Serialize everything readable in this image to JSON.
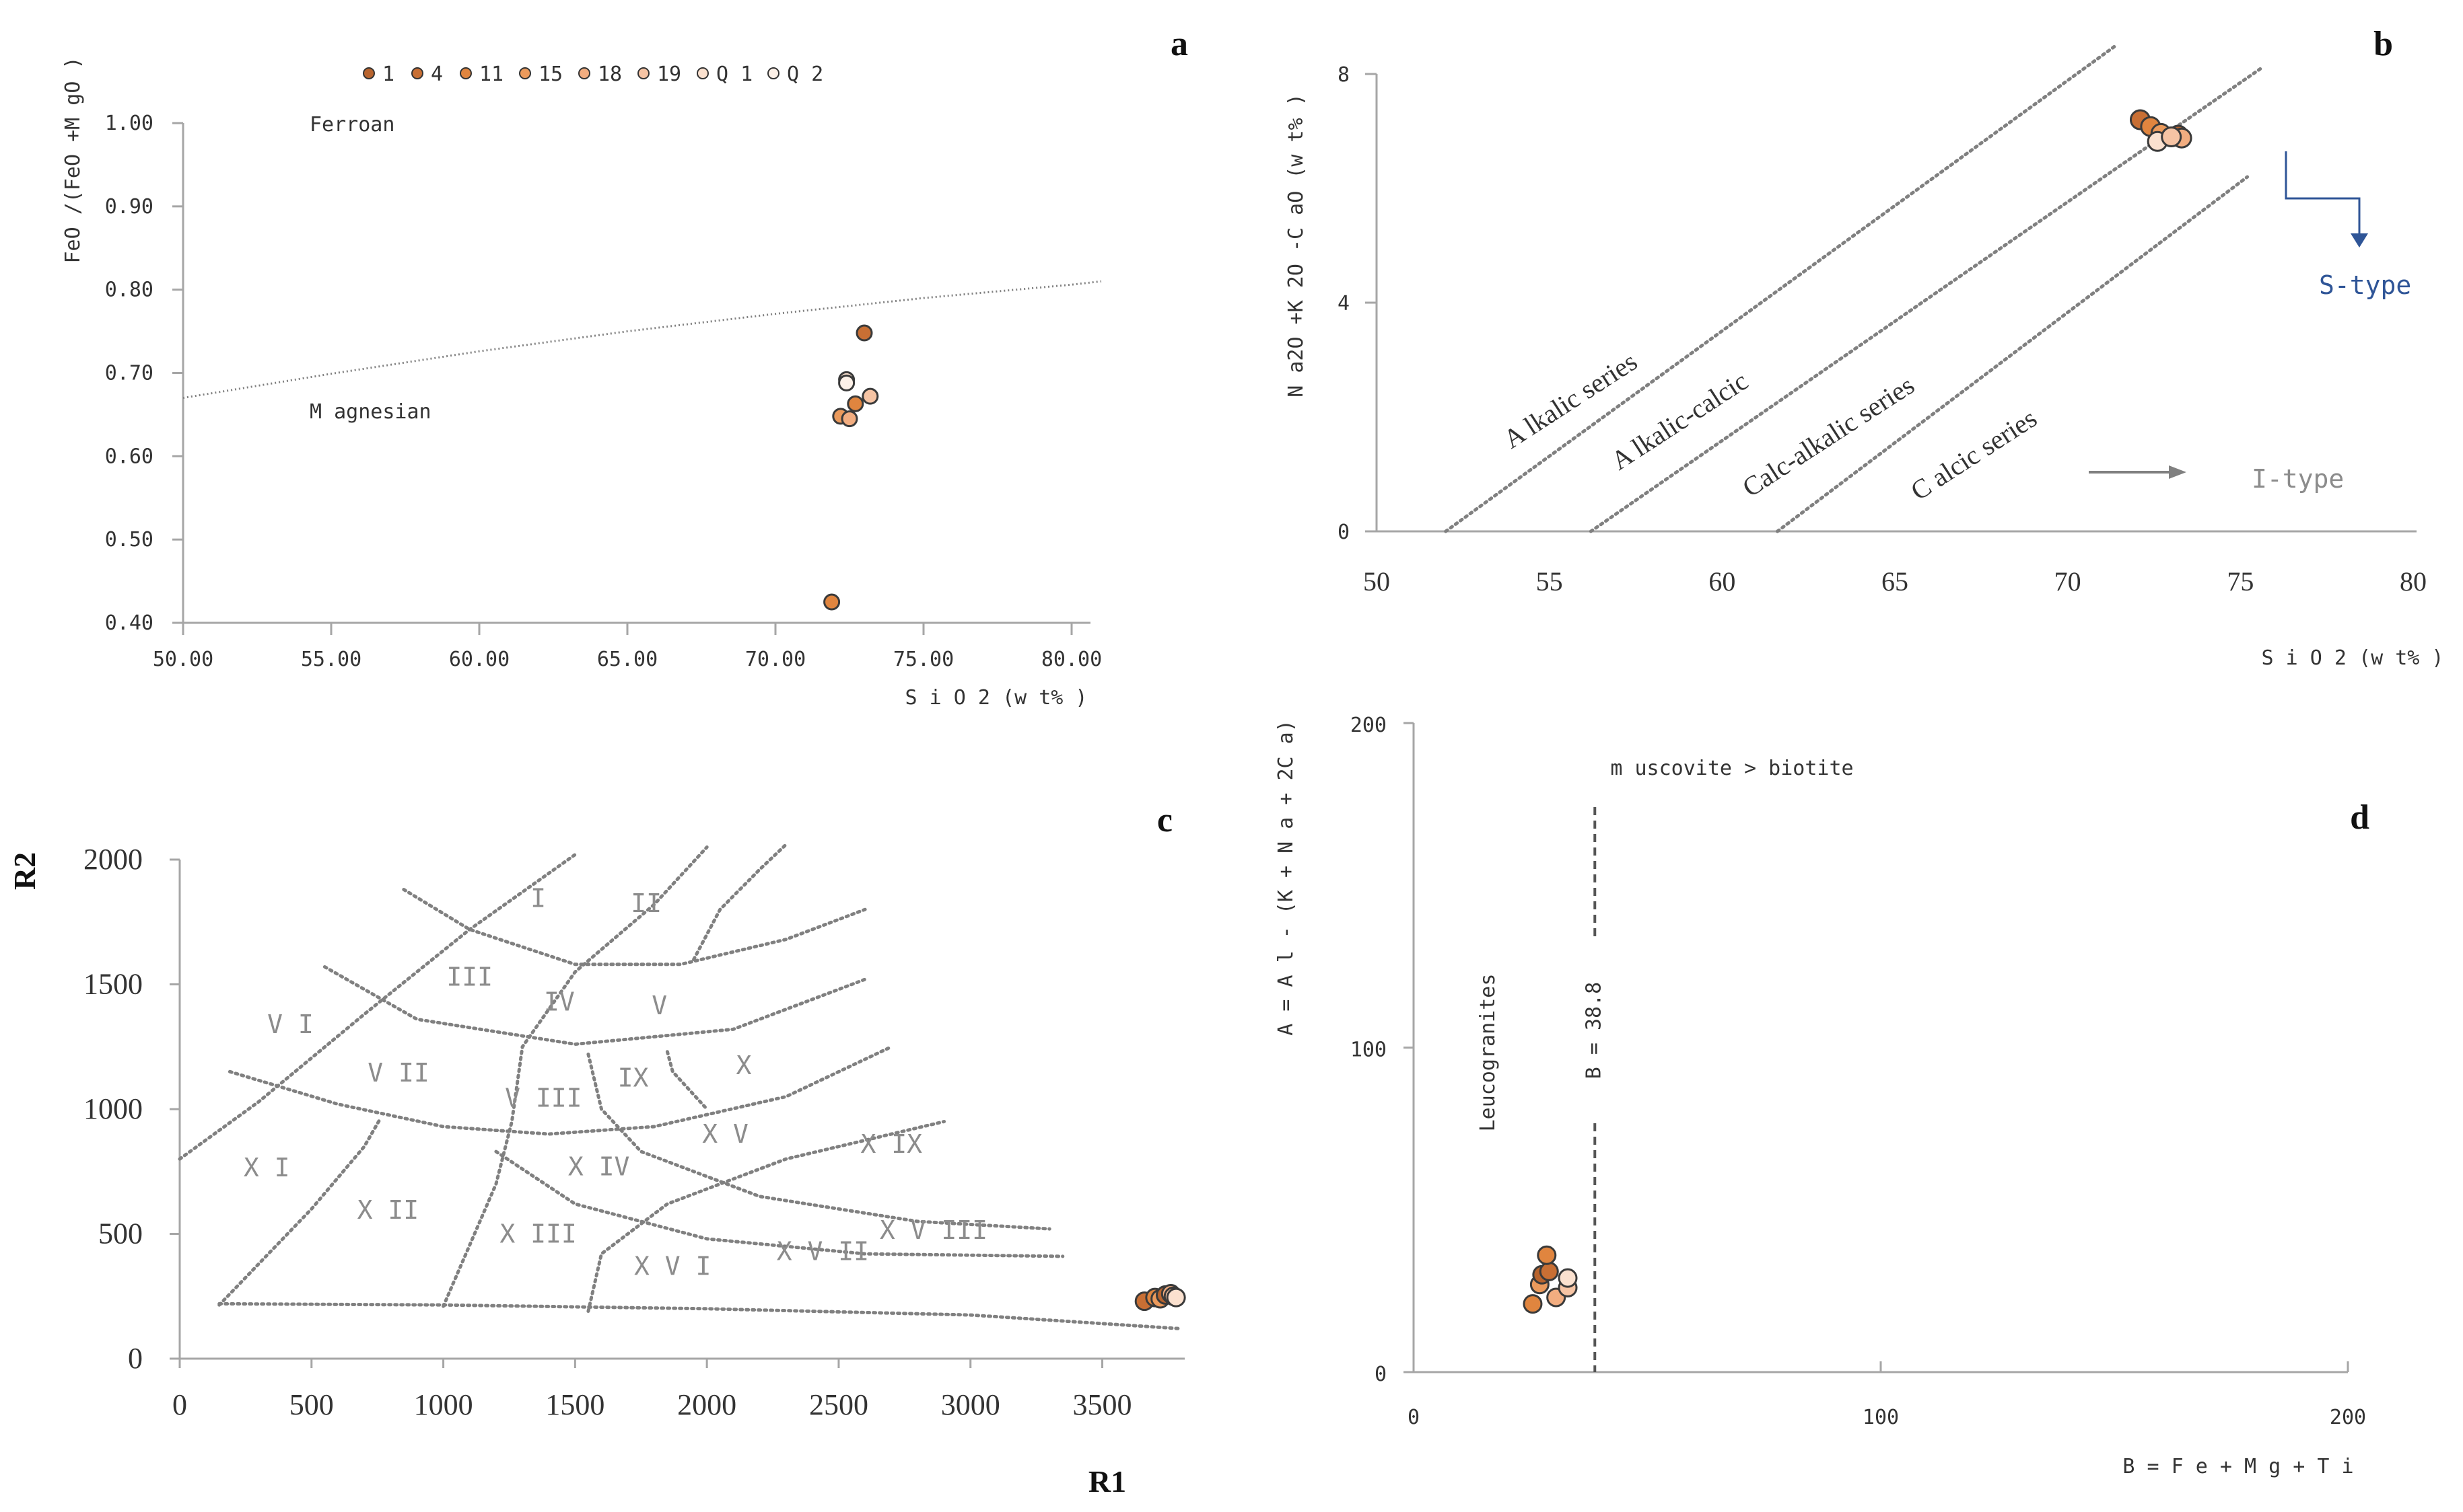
{
  "chart_data": [
    {
      "panel": "a",
      "type": "scatter",
      "panel_label": "a",
      "xlabel": "S i O 2 (w t% )",
      "ylabel": "FeO /(FeO +M gO )",
      "xlim": [
        50,
        82
      ],
      "ylim": [
        0.4,
        1.0
      ],
      "x_ticks": [
        "50.00",
        "55.00",
        "60.00",
        "65.00",
        "70.00",
        "75.00",
        "80.00"
      ],
      "y_ticks": [
        "0.40",
        "0.50",
        "0.60",
        "0.70",
        "0.80",
        "0.90",
        "1.00"
      ],
      "legend": [
        {
          "label": "1",
          "color": "#b8642e"
        },
        {
          "label": "4",
          "color": "#c86f34"
        },
        {
          "label": "11",
          "color": "#e0853f"
        },
        {
          "label": "15",
          "color": "#eb9a5c"
        },
        {
          "label": "18",
          "color": "#f2ad80"
        },
        {
          "label": "19",
          "color": "#f6c4a4"
        },
        {
          "label": "Q 1",
          "color": "#fbe1cf"
        },
        {
          "label": "Q 2",
          "color": "#fdf1e8"
        }
      ],
      "region_labels": [
        "Ferroan",
        "M agnesian"
      ],
      "boundary": {
        "x": [
          50,
          55,
          60,
          65,
          70,
          75,
          80,
          81
        ],
        "y": [
          0.67,
          0.699,
          0.726,
          0.75,
          0.771,
          0.79,
          0.806,
          0.81
        ]
      },
      "points": [
        {
          "x": 71.9,
          "y": 0.425,
          "color": "#e0853f"
        },
        {
          "x": 72.2,
          "y": 0.648,
          "color": "#eb9a5c"
        },
        {
          "x": 72.5,
          "y": 0.645,
          "color": "#f2ad80"
        },
        {
          "x": 72.7,
          "y": 0.663,
          "color": "#e0853f"
        },
        {
          "x": 73.2,
          "y": 0.672,
          "color": "#f6c4a4"
        },
        {
          "x": 73.0,
          "y": 0.748,
          "color": "#c86f34"
        },
        {
          "x": 72.4,
          "y": 0.692,
          "color": "#fbe1cf"
        },
        {
          "x": 72.4,
          "y": 0.688,
          "color": "#fdf1e8"
        }
      ]
    },
    {
      "panel": "b",
      "type": "scatter",
      "panel_label": "b",
      "xlabel": "S i O 2 (w t% )",
      "ylabel": "N a2O +K 2O -C aO  (w t% )",
      "xlim": [
        50,
        80
      ],
      "ylim": [
        0,
        8
      ],
      "x_ticks": [
        "50",
        "55",
        "60",
        "65",
        "70",
        "75",
        "80"
      ],
      "y_ticks": [
        "0",
        "4",
        "8"
      ],
      "series_lines": [
        {
          "name": "A lkalic series",
          "x": [
            52,
            71.4
          ],
          "y": [
            0,
            8.5
          ]
        },
        {
          "name": "A lkalic-calcic",
          "x": [
            56.2,
            75.6
          ],
          "y": [
            0,
            8.1
          ]
        },
        {
          "name": "Calc-alkalic series",
          "x": [
            61.6,
            75.2
          ],
          "y": [
            0,
            6.2
          ]
        }
      ],
      "series_labels": [
        "A lkalic series",
        "A lkalic-calcic",
        "Calc-alkalic series",
        "C alcic series"
      ],
      "annotations": [
        "S-type",
        "I-type"
      ],
      "points": [
        {
          "x": 72.1,
          "y": 7.2,
          "color": "#c86f34"
        },
        {
          "x": 72.4,
          "y": 7.08,
          "color": "#e0853f"
        },
        {
          "x": 72.7,
          "y": 6.96,
          "color": "#eb9a5c"
        },
        {
          "x": 73.2,
          "y": 6.93,
          "color": "#b8642e"
        },
        {
          "x": 73.3,
          "y": 6.88,
          "color": "#f2ad80"
        },
        {
          "x": 72.6,
          "y": 6.82,
          "color": "#fbe1cf"
        },
        {
          "x": 73.0,
          "y": 6.9,
          "color": "#f6c4a4"
        }
      ]
    },
    {
      "panel": "c",
      "type": "scatter",
      "panel_label": "c",
      "xlabel": "R1",
      "ylabel": "R2",
      "xlim": [
        0,
        3800
      ],
      "ylim": [
        0,
        2000
      ],
      "x_ticks": [
        "0",
        "500",
        "1000",
        "1500",
        "2000",
        "2500",
        "3000",
        "3500"
      ],
      "y_ticks": [
        "0",
        "500",
        "1000",
        "1500",
        "2000"
      ],
      "field_labels": [
        {
          "label": "I",
          "x": 1360,
          "y": 1810
        },
        {
          "label": "II",
          "x": 1770,
          "y": 1790
        },
        {
          "label": "III",
          "x": 1100,
          "y": 1495
        },
        {
          "label": "IV",
          "x": 1440,
          "y": 1395
        },
        {
          "label": "V",
          "x": 1820,
          "y": 1380
        },
        {
          "label": "V I",
          "x": 420,
          "y": 1305
        },
        {
          "label": "V II",
          "x": 830,
          "y": 1110
        },
        {
          "label": "V III",
          "x": 1380,
          "y": 1010
        },
        {
          "label": "IX",
          "x": 1720,
          "y": 1090
        },
        {
          "label": "X",
          "x": 2140,
          "y": 1140
        },
        {
          "label": "X I",
          "x": 330,
          "y": 730
        },
        {
          "label": "X II",
          "x": 790,
          "y": 560
        },
        {
          "label": "X III",
          "x": 1360,
          "y": 465
        },
        {
          "label": "X IV",
          "x": 1590,
          "y": 735
        },
        {
          "label": "X V",
          "x": 2070,
          "y": 865
        },
        {
          "label": "X V I",
          "x": 1870,
          "y": 335
        },
        {
          "label": "X V II",
          "x": 2440,
          "y": 395
        },
        {
          "label": "X V III",
          "x": 2860,
          "y": 480
        },
        {
          "label": "X IX",
          "x": 2700,
          "y": 825
        }
      ],
      "points": [
        {
          "x": 3660,
          "y": 230,
          "color": "#c86f34"
        },
        {
          "x": 3700,
          "y": 245,
          "color": "#e0853f"
        },
        {
          "x": 3720,
          "y": 240,
          "color": "#eb9a5c"
        },
        {
          "x": 3740,
          "y": 255,
          "color": "#b8642e"
        },
        {
          "x": 3760,
          "y": 260,
          "color": "#f2ad80"
        },
        {
          "x": 3770,
          "y": 250,
          "color": "#f6c4a4"
        },
        {
          "x": 3780,
          "y": 245,
          "color": "#fbe1cf"
        }
      ]
    },
    {
      "panel": "d",
      "type": "scatter",
      "panel_label": "d",
      "xlabel": "B = F e + M g + T i",
      "ylabel": "A = A l - (K + N a + 2C a)",
      "xlim": [
        0,
        200
      ],
      "ylim": [
        0,
        200
      ],
      "x_ticks": [
        "0",
        "100",
        "200"
      ],
      "y_ticks": [
        "0",
        "100",
        "200"
      ],
      "vertical_line": {
        "x": 38.8,
        "label": "B = 38.8"
      },
      "annotations": [
        "m uscovite > biotite",
        "Leucogranites"
      ],
      "points": [
        {
          "x": 25.5,
          "y": 21,
          "color": "#e0853f"
        },
        {
          "x": 27.0,
          "y": 27,
          "color": "#eb9a5c"
        },
        {
          "x": 27.5,
          "y": 30,
          "color": "#b8642e"
        },
        {
          "x": 29.0,
          "y": 31,
          "color": "#c86f34"
        },
        {
          "x": 28.5,
          "y": 36,
          "color": "#e0853f"
        },
        {
          "x": 30.5,
          "y": 23,
          "color": "#f2ad80"
        },
        {
          "x": 33.0,
          "y": 26,
          "color": "#f6c4a4"
        },
        {
          "x": 33.0,
          "y": 29,
          "color": "#fbe1cf"
        }
      ]
    }
  ]
}
